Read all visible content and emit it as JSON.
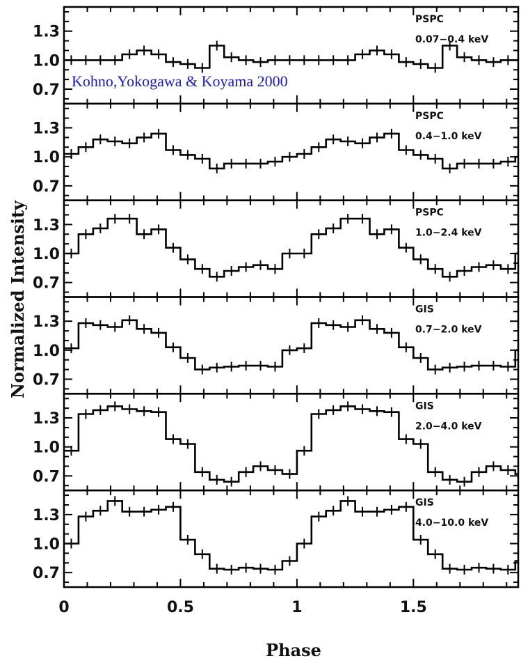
{
  "chart_data": {
    "type": "line",
    "xlabel": "Phase",
    "ylabel": "Normalized Intensity",
    "xlim": [
      0,
      1.95
    ],
    "x_ticks": [
      "0",
      "0.5",
      "1",
      "1.5"
    ],
    "x_tick_values": [
      0,
      0.5,
      1,
      1.5
    ],
    "y_ticks": [
      "1.3",
      "1.0",
      "0.7"
    ],
    "y_tick_values": [
      1.3,
      1.0,
      0.7
    ],
    "credit": "Kohno,Yokogawa & Koyama 2000",
    "panels": [
      {
        "instrument": "PSPC",
        "band": "0.07−0.4 keV",
        "ylim": [
          0.55,
          1.55
        ],
        "values": [
          1.0,
          1.0,
          1.0,
          1.0,
          1.06,
          1.1,
          1.06,
          0.98,
          0.96,
          0.92,
          1.15,
          1.03,
          1.0,
          0.98,
          1.0,
          1.0
        ]
      },
      {
        "instrument": "PSPC",
        "band": "0.4−1.0 keV",
        "ylim": [
          0.55,
          1.55
        ],
        "values": [
          1.03,
          1.1,
          1.18,
          1.16,
          1.14,
          1.2,
          1.24,
          1.07,
          1.02,
          0.98,
          0.88,
          0.93,
          0.93,
          0.93,
          0.95,
          1.0
        ]
      },
      {
        "instrument": "PSPC",
        "band": "1.0−2.4 keV",
        "ylim": [
          0.55,
          1.55
        ],
        "values": [
          1.0,
          1.2,
          1.26,
          1.36,
          1.36,
          1.2,
          1.25,
          1.06,
          0.94,
          0.84,
          0.76,
          0.82,
          0.86,
          0.88,
          0.84,
          1.0
        ]
      },
      {
        "instrument": "GIS",
        "band": "0.7−2.0 keV",
        "ylim": [
          0.55,
          1.55
        ],
        "values": [
          1.02,
          1.28,
          1.26,
          1.24,
          1.31,
          1.22,
          1.18,
          1.03,
          0.92,
          0.8,
          0.82,
          0.83,
          0.84,
          0.84,
          0.83,
          1.0
        ]
      },
      {
        "instrument": "GIS",
        "band": "2.0−4.0 keV",
        "ylim": [
          0.55,
          1.55
        ],
        "values": [
          0.96,
          1.34,
          1.38,
          1.42,
          1.39,
          1.37,
          1.36,
          1.08,
          1.03,
          0.74,
          0.66,
          0.64,
          0.74,
          0.8,
          0.76,
          0.72
        ]
      },
      {
        "instrument": "GIS",
        "band": "4.0−10.0 keV",
        "ylim": [
          0.55,
          1.55
        ],
        "values": [
          1.0,
          1.28,
          1.34,
          1.44,
          1.33,
          1.33,
          1.35,
          1.38,
          1.04,
          0.89,
          0.74,
          0.73,
          0.75,
          0.74,
          0.73,
          0.82
        ]
      }
    ]
  }
}
